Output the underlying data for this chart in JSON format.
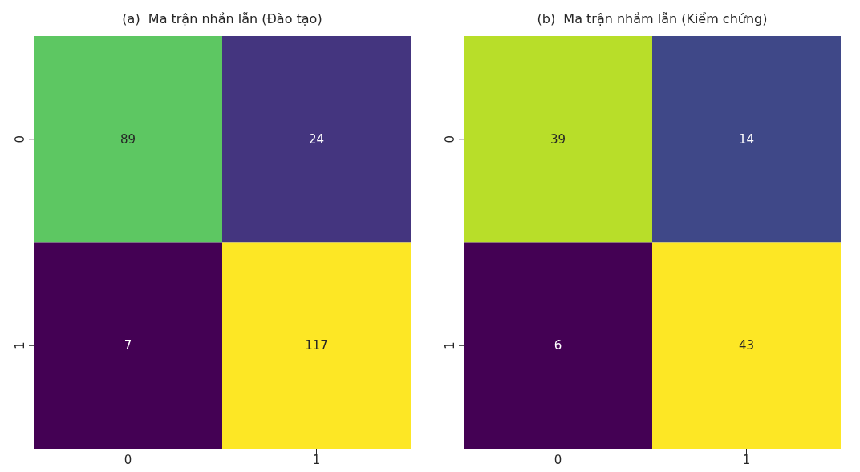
{
  "chart_data": [
    {
      "type": "heatmap",
      "title": "(a)  Ma trận nhần lẫn (Đào tạo)",
      "categories": [
        "0",
        "1"
      ],
      "y_categories": [
        "0",
        "1"
      ],
      "cells": [
        [
          89,
          24
        ],
        [
          7,
          117
        ]
      ],
      "data_labels": true
    },
    {
      "type": "heatmap",
      "title": "(b)  Ma trận nhầm lẫn (Kiểm chứng)",
      "categories": [
        "0",
        "1"
      ],
      "y_categories": [
        "0",
        "1"
      ],
      "cells": [
        [
          39,
          14
        ],
        [
          6,
          43
        ]
      ],
      "data_labels": true
    }
  ]
}
